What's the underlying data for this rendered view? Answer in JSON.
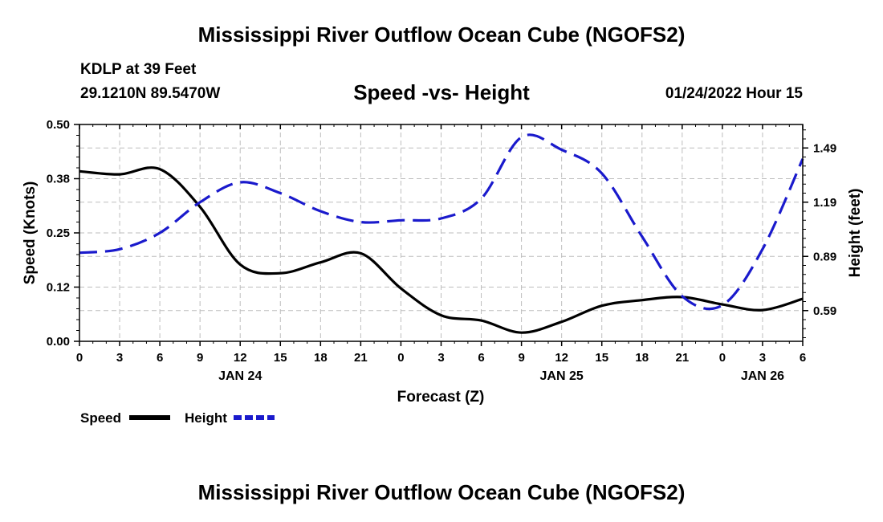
{
  "header": {
    "title": "Mississippi River Outflow Ocean Cube (NGOFS2)",
    "station": "KDLP at 39 Feet",
    "coords": "29.1210N  89.5470W",
    "subtitle": "Speed -vs- Height",
    "datetime": "01/24/2022 Hour 15"
  },
  "footer": {
    "title": "Mississippi River Outflow Ocean Cube (NGOFS2)"
  },
  "chart_data": {
    "type": "line",
    "title": "Speed -vs- Height",
    "xlabel": "Forecast (Z)",
    "ylabel": "Speed (Knots)",
    "y2label": "Height (feet)",
    "xlim": [
      0,
      54
    ],
    "ylim": [
      0,
      0.5
    ],
    "y2lim": [
      0.42,
      1.62
    ],
    "x_ticks": [
      0,
      3,
      6,
      9,
      12,
      15,
      18,
      21,
      24,
      27,
      30,
      33,
      36,
      39,
      42,
      45,
      48,
      51,
      54
    ],
    "x_tick_labels": [
      "0",
      "3",
      "6",
      "9",
      "12",
      "15",
      "18",
      "21",
      "0",
      "3",
      "6",
      "9",
      "12",
      "15",
      "18",
      "21",
      "0",
      "3",
      "6"
    ],
    "day_labels": [
      {
        "x": 12,
        "label": "JAN 24"
      },
      {
        "x": 36,
        "label": "JAN 25"
      },
      {
        "x": 51,
        "label": "JAN 26"
      }
    ],
    "y_ticks": [
      0,
      0.125,
      0.25,
      0.375,
      0.5
    ],
    "y_tick_labels": [
      "0.00",
      "0.12",
      "0.25",
      "0.38",
      "0.50"
    ],
    "y2_ticks": [
      0.59,
      0.89,
      1.19,
      1.49
    ],
    "y2_tick_labels": [
      "0.59",
      "0.89",
      "1.19",
      "1.49"
    ],
    "grid": true,
    "legend": [
      {
        "label": "Speed",
        "color": "#000000",
        "style": "solid"
      },
      {
        "label": "Height",
        "color": "#1a1acc",
        "style": "dashed"
      }
    ],
    "series": [
      {
        "name": "Speed",
        "axis": "left",
        "color": "#000000",
        "style": "solid",
        "x": [
          0,
          3,
          6,
          9,
          12,
          15,
          18,
          21,
          24,
          27,
          30,
          33,
          36,
          39,
          42,
          45,
          48,
          51,
          54
        ],
        "values": [
          0.392,
          0.385,
          0.397,
          0.31,
          0.177,
          0.157,
          0.182,
          0.203,
          0.122,
          0.06,
          0.048,
          0.02,
          0.045,
          0.082,
          0.095,
          0.102,
          0.085,
          0.072,
          0.098
        ]
      },
      {
        "name": "Height",
        "axis": "right",
        "color": "#1a1acc",
        "style": "dashed",
        "x": [
          0,
          3,
          6,
          9,
          12,
          15,
          18,
          21,
          24,
          27,
          30,
          33,
          36,
          39,
          42,
          45,
          48,
          51,
          54
        ],
        "values": [
          0.91,
          0.93,
          1.02,
          1.19,
          1.3,
          1.24,
          1.14,
          1.08,
          1.09,
          1.1,
          1.21,
          1.55,
          1.48,
          1.35,
          1.0,
          0.67,
          0.62,
          0.93,
          1.43
        ]
      }
    ]
  }
}
